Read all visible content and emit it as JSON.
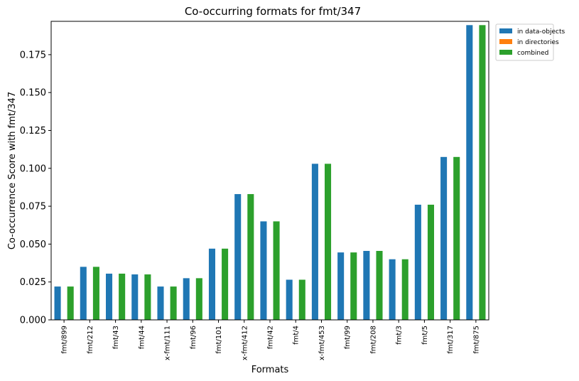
{
  "chart_data": {
    "type": "bar",
    "title": "Co-occurring formats for fmt/347",
    "xlabel": "Formats",
    "ylabel": "Co-occurrence Score with fmt/347",
    "ylim": [
      0,
      0.197
    ],
    "yticks": [
      "0.000",
      "0.025",
      "0.050",
      "0.075",
      "0.100",
      "0.125",
      "0.150",
      "0.175"
    ],
    "grid": false,
    "legend_position": "outside-top-right",
    "categories": [
      "fmt/899",
      "fmt/212",
      "fmt/43",
      "fmt/44",
      "x-fmt/111",
      "fmt/96",
      "fmt/101",
      "x-fmt/412",
      "fmt/42",
      "fmt/4",
      "x-fmt/453",
      "fmt/99",
      "fmt/208",
      "fmt/3",
      "fmt/5",
      "fmt/317",
      "fmt/875"
    ],
    "series": [
      {
        "name": "in data-objects",
        "color": "#1f77b4",
        "values": [
          0.022,
          0.035,
          0.0305,
          0.03,
          0.022,
          0.0275,
          0.047,
          0.083,
          0.065,
          0.0265,
          0.103,
          0.0445,
          0.0455,
          0.04,
          0.076,
          0.1075,
          0.1945
        ]
      },
      {
        "name": "in directories",
        "color": "#ff7f0e",
        "values": [
          0,
          0,
          0,
          0,
          0,
          0,
          0,
          0,
          0,
          0,
          0,
          0,
          0,
          0,
          0,
          0,
          0
        ]
      },
      {
        "name": "combined",
        "color": "#2ca02c",
        "values": [
          0.022,
          0.035,
          0.0305,
          0.03,
          0.022,
          0.0275,
          0.047,
          0.083,
          0.065,
          0.0265,
          0.103,
          0.0445,
          0.0455,
          0.04,
          0.076,
          0.1075,
          0.1945
        ]
      }
    ]
  }
}
